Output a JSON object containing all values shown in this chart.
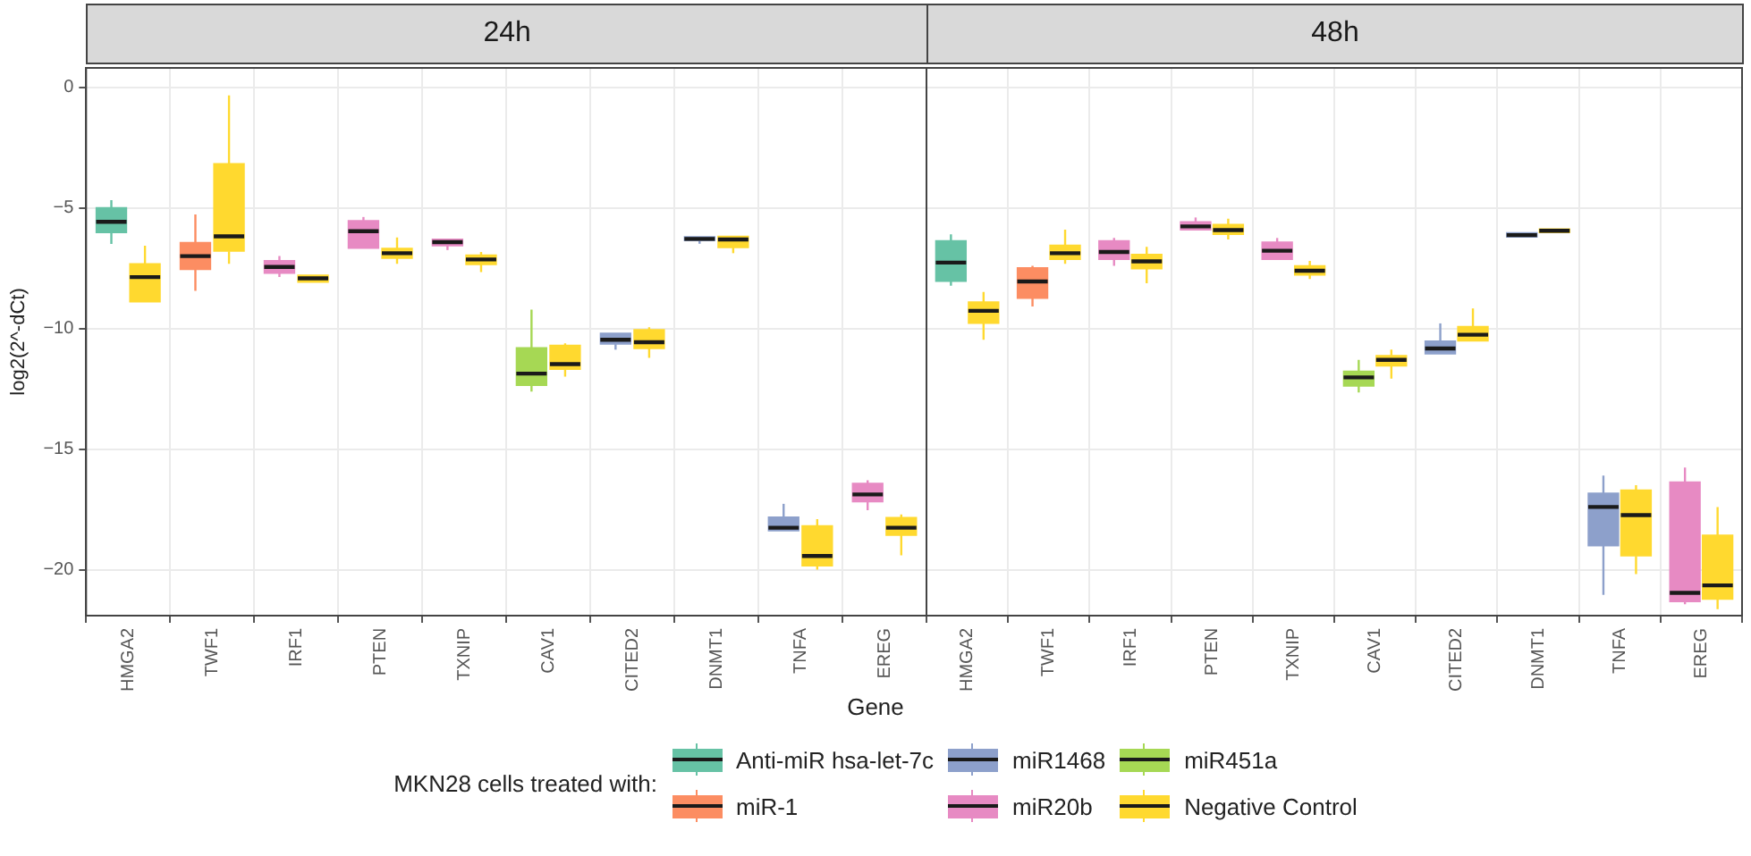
{
  "chart_data": [
    {
      "type": "box",
      "title": "24h",
      "xlabel": "Gene",
      "ylabel": "log2(2^-dCt)",
      "legend_title": "MKN28 cells treated with:",
      "legend": "bottom",
      "grid": true,
      "categories": [
        "HMGA2",
        "TWF1",
        "IRF1",
        "PTEN",
        "TXNIP",
        "CAV1",
        "CITED2",
        "DNMT1",
        "TNFA",
        "EREG"
      ],
      "ylim": [
        -21.9,
        0.8
      ],
      "yticks": [
        0,
        -5,
        -10,
        -15,
        -20
      ],
      "series": [
        {
          "name": "Anti-miR hsa-let-7c",
          "color": "#66c2a5",
          "boxes": [
            {
              "low": -6.5,
              "q1": -6.03,
              "median": -5.58,
              "q3": -4.99,
              "high": -4.68
            },
            null,
            null,
            null,
            null,
            null,
            null,
            null,
            null,
            null
          ]
        },
        {
          "name": "miR-1",
          "color": "#fc8d62",
          "boxes": [
            null,
            {
              "low": -8.44,
              "q1": -7.56,
              "median": -7.0,
              "q3": -6.44,
              "high": -5.27
            },
            null,
            null,
            null,
            null,
            null,
            null,
            null,
            null
          ]
        },
        {
          "name": "miR1468",
          "color": "#8da0cb",
          "boxes": [
            null,
            null,
            null,
            null,
            null,
            null,
            {
              "low": -10.88,
              "q1": -10.65,
              "median": -10.47,
              "q3": -10.2,
              "high": -10.2
            },
            {
              "low": -6.49,
              "q1": -6.36,
              "median": -6.29,
              "q3": -6.2,
              "high": -6.2
            },
            {
              "low": -18.39,
              "q1": -18.39,
              "median": -18.26,
              "q3": -17.82,
              "high": -17.27
            },
            null
          ]
        },
        {
          "name": "miR20b",
          "color": "#e78ac3",
          "boxes": [
            null,
            null,
            {
              "low": -7.87,
              "q1": -7.71,
              "median": -7.45,
              "q3": -7.19,
              "high": -7.0
            },
            {
              "low": -6.68,
              "q1": -6.68,
              "median": -5.97,
              "q3": -5.53,
              "high": -5.38
            },
            {
              "low": -6.75,
              "q1": -6.57,
              "median": -6.42,
              "q3": -6.3,
              "high": -6.3
            },
            null,
            null,
            null,
            null,
            {
              "low": -17.53,
              "q1": -17.19,
              "median": -16.88,
              "q3": -16.42,
              "high": -16.29
            }
          ]
        },
        {
          "name": "miR451a",
          "color": "#a6d854",
          "boxes": [
            null,
            null,
            null,
            null,
            null,
            {
              "low": -12.62,
              "q1": -12.36,
              "median": -11.87,
              "q3": -10.8,
              "high": -9.22
            },
            null,
            null,
            null,
            null
          ]
        },
        {
          "name": "Negative Control",
          "color": "#ffd92f",
          "boxes": [
            {
              "low": -8.9,
              "q1": -8.9,
              "median": -7.87,
              "q3": -7.32,
              "high": -6.57
            },
            {
              "low": -7.32,
              "q1": -6.8,
              "median": -6.18,
              "q3": -3.17,
              "high": -0.34
            },
            {
              "low": -8.08,
              "q1": -8.08,
              "median": -7.92,
              "q3": -7.79,
              "high": -7.79
            },
            {
              "low": -7.32,
              "q1": -7.09,
              "median": -6.88,
              "q3": -6.68,
              "high": -6.23
            },
            {
              "low": -7.66,
              "q1": -7.35,
              "median": -7.14,
              "q3": -6.96,
              "high": -6.83
            },
            {
              "low": -12.0,
              "q1": -11.69,
              "median": -11.48,
              "q3": -10.7,
              "high": -10.62
            },
            {
              "low": -11.22,
              "q1": -10.83,
              "median": -10.57,
              "q3": -10.05,
              "high": -9.95
            },
            {
              "low": -6.88,
              "q1": -6.65,
              "median": -6.31,
              "q3": -6.18,
              "high": -6.18
            },
            {
              "low": -20.0,
              "q1": -19.84,
              "median": -19.43,
              "q3": -18.18,
              "high": -17.9
            },
            {
              "low": -19.4,
              "q1": -18.57,
              "median": -18.26,
              "q3": -17.84,
              "high": -17.71
            }
          ]
        }
      ]
    },
    {
      "type": "box",
      "title": "48h",
      "grid": true,
      "tick_labels": "x",
      "categories": [
        "HMGA2",
        "TWF1",
        "IRF1",
        "PTEN",
        "TXNIP",
        "CAV1",
        "CITED2",
        "DNMT1",
        "TNFA",
        "EREG"
      ],
      "ylim": [
        -21.9,
        0.8
      ],
      "yticks": [
        0,
        -5,
        -10,
        -15,
        -20
      ],
      "series": [
        {
          "color": "#66c2a5",
          "boxes": [
            {
              "low": -8.23,
              "q1": -8.05,
              "median": -7.27,
              "q3": -6.36,
              "high": -6.1
            },
            null,
            null,
            null,
            null,
            null,
            null,
            null,
            null,
            null
          ]
        },
        {
          "color": "#fc8d62",
          "boxes": [
            null,
            {
              "low": -9.09,
              "q1": -8.75,
              "median": -8.05,
              "q3": -7.48,
              "high": -7.4
            },
            null,
            null,
            null,
            null,
            null,
            null,
            null,
            null
          ]
        },
        {
          "color": "#8da0cb",
          "boxes": [
            null,
            null,
            null,
            null,
            null,
            null,
            {
              "low": -11.06,
              "q1": -11.06,
              "median": -10.83,
              "q3": -10.52,
              "high": -9.79
            },
            {
              "low": -6.21,
              "q1": -6.21,
              "median": -6.13,
              "q3": -6.03,
              "high": -6.03
            },
            {
              "low": -21.04,
              "q1": -19.01,
              "median": -17.4,
              "q3": -16.83,
              "high": -16.1
            },
            null
          ]
        },
        {
          "color": "#e78ac3",
          "boxes": [
            null,
            null,
            {
              "low": -7.4,
              "q1": -7.14,
              "median": -6.83,
              "q3": -6.36,
              "high": -6.25
            },
            {
              "low": -5.92,
              "q1": -5.92,
              "median": -5.77,
              "q3": -5.58,
              "high": -5.4
            },
            {
              "low": -7.14,
              "q1": -7.14,
              "median": -6.78,
              "q3": -6.42,
              "high": -6.25
            },
            null,
            null,
            null,
            null,
            {
              "low": -21.43,
              "q1": -21.32,
              "median": -20.96,
              "q3": -16.36,
              "high": -15.77
            }
          ]
        },
        {
          "color": "#a6d854",
          "boxes": [
            null,
            null,
            null,
            null,
            null,
            {
              "low": -12.65,
              "q1": -12.39,
              "median": -12.03,
              "q3": -11.77,
              "high": -11.3
            },
            null,
            null,
            null,
            null
          ]
        },
        {
          "color": "#ffd92f",
          "boxes": [
            {
              "low": -10.47,
              "q1": -9.79,
              "median": -9.27,
              "q3": -8.9,
              "high": -8.49
            },
            {
              "low": -7.32,
              "q1": -7.14,
              "median": -6.88,
              "q3": -6.55,
              "high": -5.9
            },
            {
              "low": -8.13,
              "q1": -7.53,
              "median": -7.22,
              "q3": -6.93,
              "high": -6.62
            },
            {
              "low": -6.31,
              "q1": -6.1,
              "median": -5.92,
              "q3": -5.69,
              "high": -5.45
            },
            {
              "low": -7.95,
              "q1": -7.79,
              "median": -7.61,
              "q3": -7.4,
              "high": -7.2
            },
            {
              "low": -12.08,
              "q1": -11.56,
              "median": -11.3,
              "q3": -11.12,
              "high": -10.88
            },
            {
              "low": -10.52,
              "q1": -10.52,
              "median": -10.26,
              "q3": -9.92,
              "high": -9.17
            },
            {
              "low": -6.03,
              "q1": -6.03,
              "median": -5.95,
              "q3": -5.87,
              "high": -5.87
            },
            {
              "low": -20.18,
              "q1": -19.43,
              "median": -17.74,
              "q3": -16.7,
              "high": -16.5
            },
            {
              "low": -21.64,
              "q1": -21.22,
              "median": -20.65,
              "q3": -18.57,
              "high": -17.4
            }
          ]
        }
      ]
    }
  ]
}
